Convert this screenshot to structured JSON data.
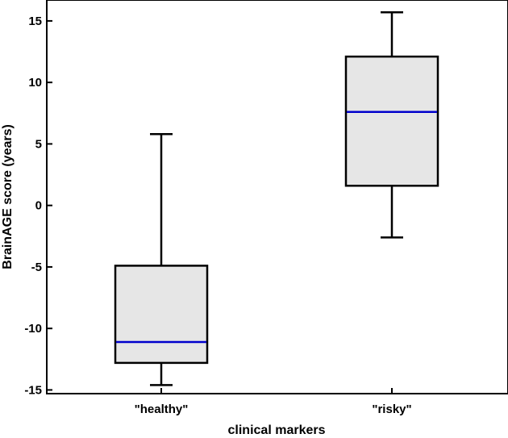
{
  "chart_data": {
    "type": "box",
    "xlabel": "clinical markers",
    "ylabel": "BrainAGE score (years)",
    "ylim": [
      -15.3,
      16.7
    ],
    "yticks": [
      -15,
      -10,
      -5,
      0,
      5,
      10,
      15
    ],
    "categories": [
      "\"healthy\"",
      "\"risky\""
    ],
    "boxes": [
      {
        "category": "\"healthy\"",
        "whisker_low": -14.6,
        "q1": -12.8,
        "median": -11.1,
        "q3": -4.9,
        "whisker_high": 5.8
      },
      {
        "category": "\"risky\"",
        "whisker_low": -2.6,
        "q1": 1.6,
        "median": 7.6,
        "q3": 12.1,
        "whisker_high": 15.7
      }
    ],
    "colors": {
      "box_fill": "#e6e6e6",
      "median": "#0000cc",
      "line": "#000000"
    }
  }
}
